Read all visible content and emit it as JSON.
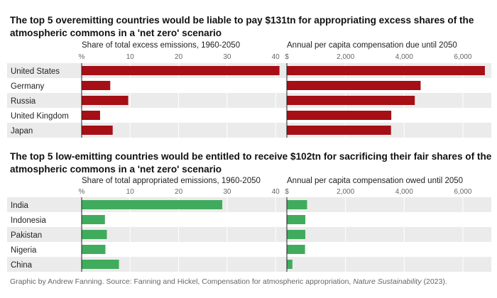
{
  "chart_data": [
    {
      "type": "bar",
      "title": "The top 5 overemitting countries would be liable to pay $131tn for appropriating excess shares of the atmospheric commons in a 'net zero' scenario",
      "categories": [
        "United States",
        "Germany",
        "Russia",
        "United Kingdom",
        "Japan"
      ],
      "color": "#A50F15",
      "panels": [
        {
          "subtitle": "Share of total excess emissions, 1960-2050",
          "unit": "%",
          "ticks": [
            10,
            20,
            30,
            40
          ],
          "xlim": [
            0,
            41
          ],
          "values": [
            40.8,
            5.9,
            9.6,
            3.8,
            6.4
          ]
        },
        {
          "subtitle": "Annual per capita compensation due until 2050",
          "unit": "$",
          "ticks": [
            2000,
            4000,
            6000
          ],
          "tick_labels": [
            "2,000",
            "4,000",
            "6,000"
          ],
          "xlim": [
            0,
            6800
          ],
          "values": [
            6750,
            4560,
            4360,
            3560,
            3550
          ]
        }
      ]
    },
    {
      "type": "bar",
      "title": "The top 5 low-emitting countries would be entitled to receive $102tn for sacrificing their fair shares of the atmospheric commons in a 'net zero' scenario",
      "categories": [
        "India",
        "Indonesia",
        "Pakistan",
        "Nigeria",
        "China"
      ],
      "color": "#41AB5D",
      "panels": [
        {
          "subtitle": "Share of total appropriated emissions, 1960-2050",
          "unit": "%",
          "ticks": [
            10,
            20,
            30,
            40
          ],
          "xlim": [
            0,
            41
          ],
          "values": [
            29.0,
            4.8,
            5.2,
            4.9,
            7.7
          ]
        },
        {
          "subtitle": "Annual per capita compensation owed until 2050",
          "unit": "$",
          "ticks": [
            2000,
            4000,
            6000
          ],
          "tick_labels": [
            "2,000",
            "4,000",
            "6,000"
          ],
          "xlim": [
            0,
            6800
          ],
          "values": [
            690,
            630,
            630,
            620,
            190
          ]
        }
      ]
    }
  ],
  "caption": {
    "text": "Graphic by Andrew Fanning. Source: Fanning and Hickel, Compensation for atmospheric appropriation, ",
    "journal": "Nature Sustainability",
    "year": " (2023)."
  }
}
